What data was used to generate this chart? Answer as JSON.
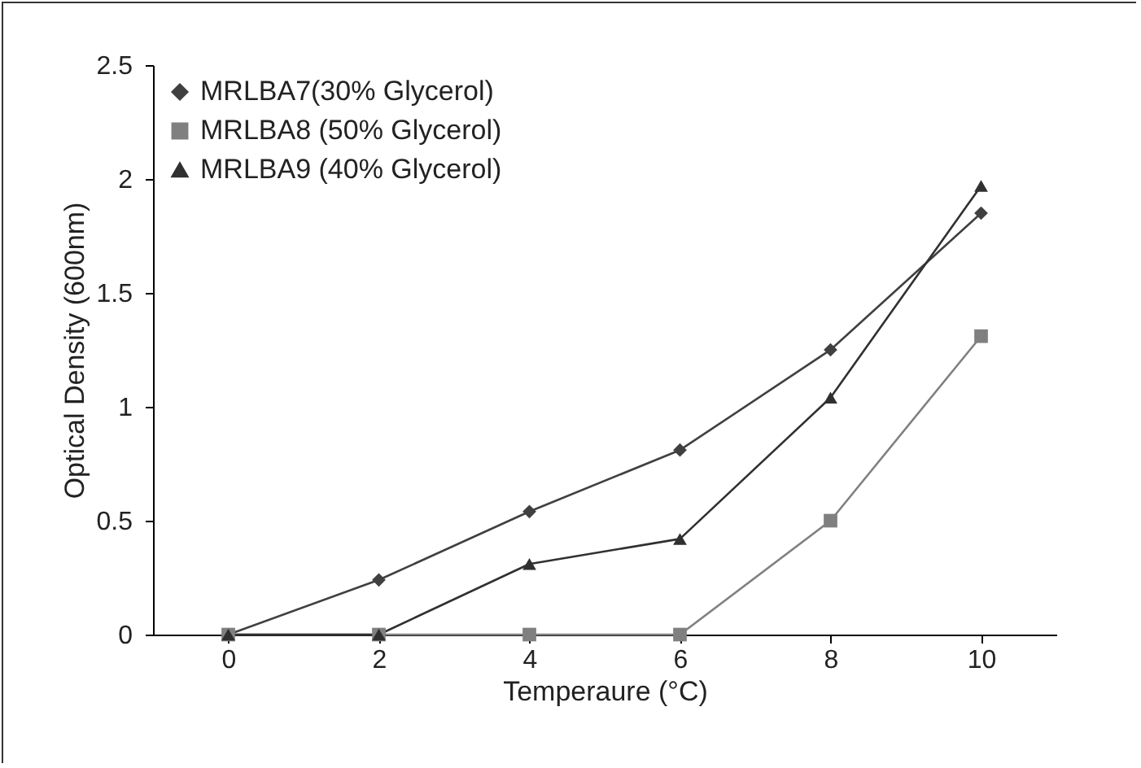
{
  "chart_data": {
    "type": "line",
    "xlabel": "Temperaure (°C)",
    "ylabel": "Optical Density (600nm)",
    "categories": [
      "0",
      "2",
      "4",
      "6",
      "8",
      "10"
    ],
    "series": [
      {
        "name": "MRLBA7(30% Glycerol)",
        "color": "#404040",
        "marker": "diamond",
        "values": [
          0,
          0.24,
          0.54,
          0.81,
          1.25,
          1.85
        ]
      },
      {
        "name": "MRLBA8 (50% Glycerol)",
        "color": "#808080",
        "marker": "square",
        "values": [
          0,
          0,
          0,
          0,
          0.5,
          1.31
        ]
      },
      {
        "name": "MRLBA9 (40% Glycerol)",
        "color": "#303030",
        "marker": "triangle",
        "values": [
          0,
          0,
          0.31,
          0.42,
          1.04,
          1.97
        ]
      }
    ],
    "ylim": [
      0,
      2.5
    ],
    "yticks": [
      0,
      0.5,
      1,
      1.5,
      2,
      2.5
    ],
    "grid": false,
    "legend": "top left"
  }
}
